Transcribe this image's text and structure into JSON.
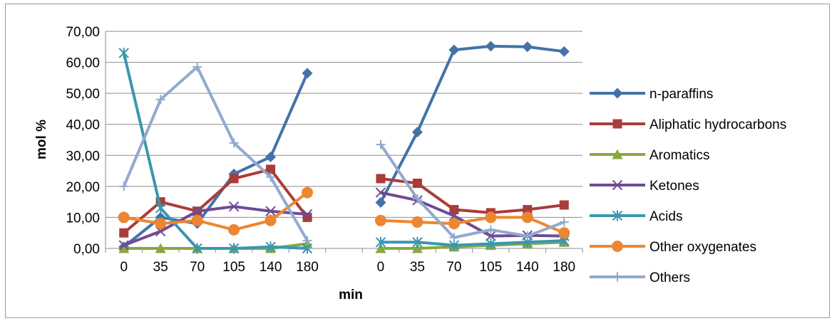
{
  "chart_data": {
    "type": "line",
    "title": "",
    "xlabel": "min",
    "ylabel": "mol %",
    "ylim": [
      0,
      70
    ],
    "y_ticks": [
      "0,00",
      "10,00",
      "20,00",
      "30,00",
      "40,00",
      "50,00",
      "60,00",
      "70,00"
    ],
    "grid": true,
    "legend_position": "right",
    "categories": [
      "0",
      "35",
      "70",
      "105",
      "140",
      "180",
      "",
      "0",
      "35",
      "70",
      "105",
      "140",
      "180"
    ],
    "series": [
      {
        "name": "n-paraffins",
        "color": "#4472A8",
        "marker": "diamond",
        "values": [
          0.5,
          10,
          8,
          24,
          29.5,
          56.5,
          null,
          14.8,
          37.5,
          64,
          65.2,
          65,
          63.5
        ]
      },
      {
        "name": "Aliphatic hydrocarbons",
        "color": "#AA3C3A",
        "marker": "square",
        "values": [
          5,
          15,
          12,
          22.5,
          25.5,
          10,
          null,
          22.5,
          21,
          12.5,
          11.5,
          12.5,
          14
        ]
      },
      {
        "name": "Aromatics",
        "color": "#89A83E",
        "marker": "triangle",
        "values": [
          0,
          0,
          0,
          0,
          0,
          1.5,
          null,
          0,
          0,
          0.5,
          1,
          1.5,
          2
        ]
      },
      {
        "name": "Ketones",
        "color": "#6E4B93",
        "marker": "x",
        "values": [
          1,
          5.5,
          12,
          13.5,
          12,
          11,
          null,
          18,
          15.5,
          10.5,
          4,
          4.2,
          4
        ]
      },
      {
        "name": "Acids",
        "color": "#3A97AF",
        "marker": "asterisk",
        "values": [
          63,
          13,
          0,
          0,
          0.5,
          0,
          null,
          2,
          2,
          1,
          1.5,
          2,
          2.5
        ]
      },
      {
        "name": "Other oxygenates",
        "color": "#ED8630",
        "marker": "circle",
        "values": [
          10,
          8,
          9,
          6,
          9,
          18,
          null,
          9,
          8.5,
          8,
          10,
          10,
          5
        ]
      },
      {
        "name": "Others",
        "color": "#92A9CF",
        "marker": "plus",
        "values": [
          20,
          48,
          58.5,
          34,
          23,
          2.5,
          null,
          33.5,
          16,
          3.5,
          6,
          4,
          8.5
        ]
      }
    ]
  }
}
